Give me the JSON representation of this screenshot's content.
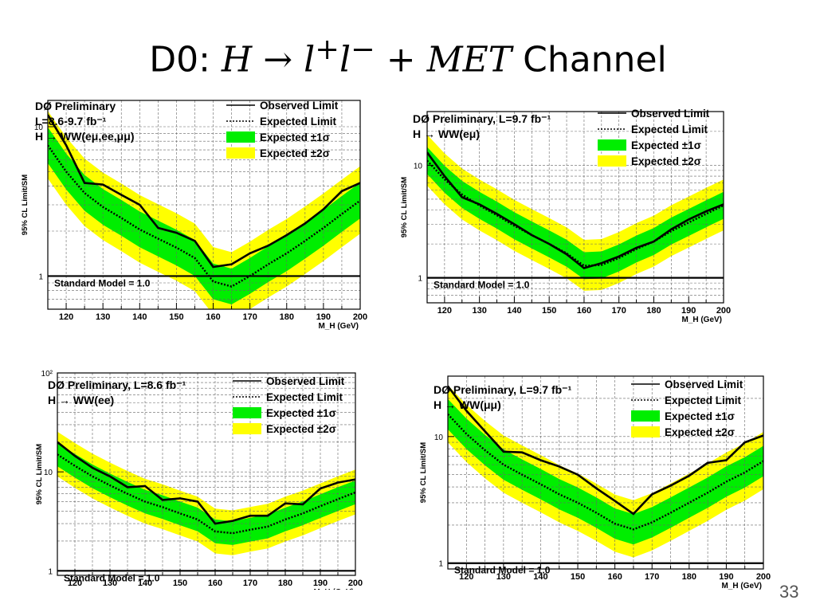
{
  "slide": {
    "title_prefix": "D0: ",
    "title_H": "H",
    "title_arrow": " → ",
    "title_l1": "l",
    "title_plus_sup": "+",
    "title_l2": "l",
    "title_minus_sup": "−",
    "title_plus": " + ",
    "title_met": "MET",
    "title_suffix": " Channel",
    "page_number": "33"
  },
  "colors": {
    "one_sigma": "#00ee00",
    "two_sigma": "#ffff00",
    "line": "#000000"
  },
  "chart_data": [
    {
      "type": "line",
      "title_lines": [
        "DØ Preliminary",
        "L=8.6-9.7 fb⁻¹",
        "H → WW(eμ,ee,μμ)"
      ],
      "ylabel": "95% CL Limit/SM",
      "xlabel": "M_H (GeV)",
      "xlim": [
        115,
        200
      ],
      "ylim": [
        0.6,
        15
      ],
      "ylog": true,
      "xticks": [
        120,
        130,
        140,
        150,
        160,
        170,
        180,
        190,
        200
      ],
      "yticks": [
        {
          "v": 1,
          "label": "1"
        },
        {
          "v": 10,
          "label": "10"
        }
      ],
      "legend": [
        "Observed Limit",
        "Expected Limit",
        "Expected ±1σ",
        "Expected ±2σ"
      ],
      "legend_pos": "top-right",
      "reference_label": "Standard Model = 1.0",
      "x": [
        115,
        120,
        125,
        130,
        135,
        140,
        145,
        150,
        155,
        160,
        165,
        170,
        175,
        180,
        185,
        190,
        195,
        200
      ],
      "observed": [
        12,
        7.5,
        4.2,
        4.1,
        3.5,
        3.0,
        2.1,
        1.95,
        1.72,
        1.15,
        1.2,
        1.42,
        1.6,
        1.88,
        2.25,
        2.8,
        3.7,
        4.2
      ],
      "expected": [
        7.5,
        5.0,
        3.6,
        2.9,
        2.45,
        2.05,
        1.78,
        1.55,
        1.32,
        0.92,
        0.85,
        1.0,
        1.2,
        1.42,
        1.72,
        2.1,
        2.6,
        3.2
      ],
      "grid": true
    },
    {
      "type": "line",
      "title_lines": [
        "DØ Preliminary, L=9.7 fb⁻¹",
        "H → WW(eμ)"
      ],
      "ylabel": "95% CL Limit/SM",
      "xlabel": "M_H (GeV)",
      "xlim": [
        115,
        200
      ],
      "ylim": [
        0.6,
        30
      ],
      "ylog": true,
      "xticks": [
        120,
        130,
        140,
        150,
        160,
        170,
        180,
        190,
        200
      ],
      "yticks": [
        {
          "v": 1,
          "label": "1"
        },
        {
          "v": 10,
          "label": "10"
        }
      ],
      "legend": [
        "Observed Limit",
        "Expected Limit",
        "Expected ±1σ",
        "Expected ±2σ"
      ],
      "legend_pos": "top-right",
      "reference_label": "Standard Model = 1.0",
      "x": [
        115,
        120,
        125,
        130,
        135,
        140,
        145,
        150,
        155,
        160,
        165,
        170,
        175,
        180,
        185,
        190,
        195,
        200
      ],
      "observed": [
        13,
        8,
        5.2,
        4.5,
        3.7,
        3.0,
        2.4,
        2.0,
        1.62,
        1.22,
        1.35,
        1.55,
        1.85,
        2.1,
        2.7,
        3.3,
        3.9,
        4.5
      ],
      "expected": [
        11,
        7.5,
        5.5,
        4.4,
        3.6,
        2.9,
        2.4,
        2.0,
        1.65,
        1.28,
        1.3,
        1.5,
        1.8,
        2.1,
        2.6,
        3.1,
        3.7,
        4.4
      ],
      "grid": true
    },
    {
      "type": "line",
      "title_lines": [
        "DØ Preliminary, L=8.6 fb⁻¹",
        "H → WW(ee)"
      ],
      "ylabel": "95% CL Limit/SM",
      "xlabel": "M_H (GeV)",
      "xlim": [
        115,
        200
      ],
      "ylim": [
        0.9,
        100
      ],
      "ylog": true,
      "xticks": [
        120,
        130,
        140,
        150,
        160,
        170,
        180,
        190,
        200
      ],
      "yticks": [
        {
          "v": 1,
          "label": "1"
        },
        {
          "v": 10,
          "label": "10"
        },
        {
          "v": 100,
          "label": "10²"
        }
      ],
      "legend": [
        "Observed Limit",
        "Expected Limit",
        "Expected ±1σ",
        "Expected ±2σ"
      ],
      "legend_pos": "top-right",
      "reference_label": "Standard Model = 1.0",
      "x": [
        115,
        120,
        125,
        130,
        135,
        140,
        145,
        150,
        155,
        160,
        165,
        170,
        175,
        180,
        185,
        190,
        195,
        200
      ],
      "observed": [
        20,
        14.5,
        11.0,
        9.0,
        7.0,
        7.2,
        5.2,
        5.4,
        5.0,
        3.0,
        3.2,
        3.6,
        3.6,
        4.8,
        4.7,
        6.8,
        7.8,
        8.4
      ],
      "expected": [
        15,
        11.5,
        9.0,
        7.3,
        6.0,
        5.0,
        4.4,
        3.8,
        3.3,
        2.5,
        2.4,
        2.6,
        2.8,
        3.3,
        3.8,
        4.5,
        5.3,
        6.2
      ],
      "grid": true
    },
    {
      "type": "line",
      "title_lines": [
        "DØ Preliminary, L=9.7 fb⁻¹",
        "H → WW(μμ)"
      ],
      "ylabel": "95% CL Limit/SM",
      "xlabel": "M_H (GeV)",
      "xlim": [
        115,
        200
      ],
      "ylim": [
        0.9,
        30
      ],
      "ylog": true,
      "xticks": [
        120,
        130,
        140,
        150,
        160,
        170,
        180,
        190,
        200
      ],
      "yticks": [
        {
          "v": 1,
          "label": "1"
        },
        {
          "v": 10,
          "label": "10"
        }
      ],
      "legend": [
        "Observed Limit",
        "Expected Limit",
        "Expected ±1σ",
        "Expected ±2σ"
      ],
      "legend_pos": "top-right",
      "reference_label": "Standard Model = 1.0",
      "x": [
        115,
        120,
        125,
        130,
        135,
        140,
        145,
        150,
        155,
        160,
        165,
        170,
        175,
        180,
        185,
        190,
        195,
        200
      ],
      "observed": [
        25,
        16,
        11.0,
        7.6,
        7.5,
        6.5,
        5.8,
        5.0,
        3.9,
        3.1,
        2.45,
        3.5,
        4.1,
        4.9,
        6.2,
        6.5,
        9.0,
        10.2
      ],
      "expected": [
        15,
        10.5,
        7.8,
        6.0,
        5.0,
        4.2,
        3.5,
        3.0,
        2.5,
        2.05,
        1.85,
        2.1,
        2.5,
        3.0,
        3.6,
        4.4,
        5.2,
        6.4
      ],
      "grid": true
    }
  ]
}
